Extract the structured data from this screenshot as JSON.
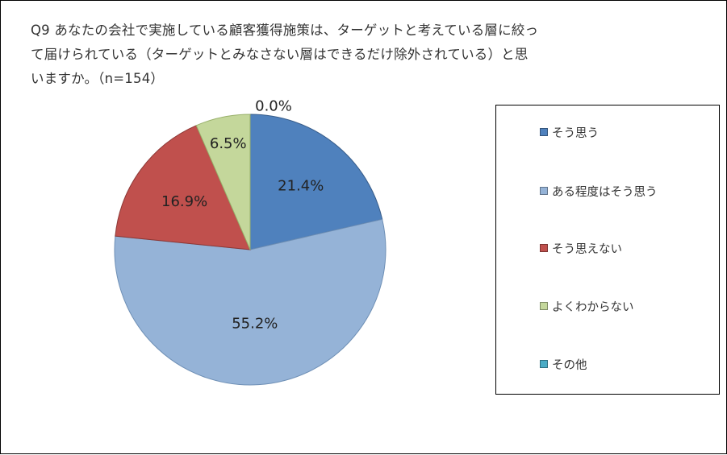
{
  "title_lines": [
    "Q9 あなたの会社で実施している顧客獲得施策は、ターゲットと考えている層に絞っ",
    "て届けられている（ターゲットとみなさない層はできるだけ除外されている）と思",
    "いますか。（n=154）"
  ],
  "chart_data": {
    "type": "pie",
    "categories": [
      "そう思う",
      "ある程度はそう思う",
      "そう思えない",
      "よくわからない",
      "その他"
    ],
    "values": [
      21.4,
      55.2,
      16.9,
      6.5,
      0.0
    ],
    "labels": [
      "21.4%",
      "55.2%",
      "16.9%",
      "6.5%",
      "0.0%"
    ],
    "colors": [
      "#4F81BD",
      "#95B3D7",
      "#C0504D",
      "#C4D79B",
      "#4BACC6"
    ],
    "start_angle_deg": 0,
    "direction": "clockwise",
    "legend_position": "right",
    "title": "Q9 あなたの会社で実施している顧客獲得施策は、ターゲットと考えている層に絞って届けられている（ターゲットとみなさない層はできるだけ除外されている）と思いますか。（n=154）"
  }
}
